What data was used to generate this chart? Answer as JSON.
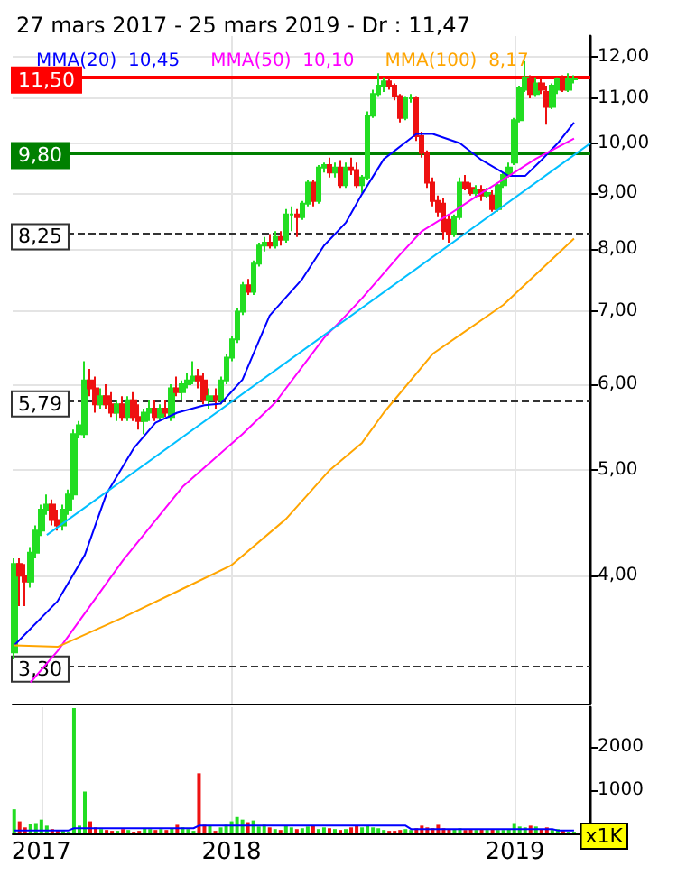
{
  "chart_data": [
    {
      "type": "candlestick",
      "title": "27 mars 2017 - 25 mars 2019 - Dr : 11,47",
      "x": [
        "2017-03-27",
        "2017-04-03",
        "2017-04-10",
        "2017-04-17",
        "2017-04-24",
        "2017-05-01",
        "2017-05-08",
        "2017-05-15",
        "2017-05-22",
        "2017-05-29",
        "2017-06-05",
        "2017-06-12",
        "2017-06-19",
        "2017-06-26",
        "2017-07-03",
        "2017-07-10",
        "2017-07-17",
        "2017-07-24",
        "2017-07-31",
        "2017-08-07",
        "2017-08-14",
        "2017-08-21",
        "2017-08-28",
        "2017-09-04",
        "2017-09-11",
        "2017-09-18",
        "2017-09-25",
        "2017-10-02",
        "2017-10-09",
        "2017-10-16",
        "2017-10-23",
        "2017-10-30",
        "2017-11-06",
        "2017-11-13",
        "2017-11-20",
        "2017-11-27",
        "2017-12-04",
        "2017-12-11",
        "2017-12-18",
        "2017-12-25",
        "2018-01-01",
        "2018-01-08",
        "2018-01-15",
        "2018-01-22",
        "2018-01-29",
        "2018-02-05",
        "2018-02-12",
        "2018-02-19",
        "2018-02-26",
        "2018-03-05",
        "2018-03-12",
        "2018-03-19",
        "2018-03-26",
        "2018-04-02",
        "2018-04-09",
        "2018-04-16",
        "2018-04-23",
        "2018-04-30",
        "2018-05-07",
        "2018-05-14",
        "2018-05-21",
        "2018-05-28",
        "2018-06-04",
        "2018-06-11",
        "2018-06-18",
        "2018-06-25",
        "2018-07-02",
        "2018-07-09",
        "2018-07-16",
        "2018-07-23",
        "2018-07-30",
        "2018-08-06",
        "2018-08-13",
        "2018-08-20",
        "2018-08-27",
        "2018-09-03",
        "2018-09-10",
        "2018-09-17",
        "2018-09-24",
        "2018-10-01",
        "2018-10-08",
        "2018-10-15",
        "2018-10-22",
        "2018-10-29",
        "2018-11-05",
        "2018-11-12",
        "2018-11-19",
        "2018-11-26",
        "2018-12-03",
        "2018-12-10",
        "2018-12-17",
        "2018-12-24",
        "2018-12-31",
        "2019-01-07",
        "2019-01-14",
        "2019-01-21",
        "2019-01-28",
        "2019-02-04",
        "2019-02-11",
        "2019-02-18",
        "2019-02-25",
        "2019-03-04",
        "2019-03-11",
        "2019-03-18"
      ],
      "ohlc": [
        [
          3.4,
          4.15,
          3.35,
          4.1
        ],
        [
          4.1,
          4.15,
          3.75,
          4.0
        ],
        [
          4.0,
          4.1,
          3.75,
          3.95
        ],
        [
          3.95,
          4.25,
          3.9,
          4.2
        ],
        [
          4.2,
          4.45,
          4.15,
          4.4
        ],
        [
          4.4,
          4.65,
          4.35,
          4.6
        ],
        [
          4.6,
          4.75,
          4.55,
          4.65
        ],
        [
          4.65,
          4.7,
          4.45,
          4.5
        ],
        [
          4.5,
          4.6,
          4.4,
          4.45
        ],
        [
          4.45,
          4.65,
          4.4,
          4.6
        ],
        [
          4.6,
          4.8,
          4.55,
          4.75
        ],
        [
          4.75,
          5.45,
          4.7,
          5.4
        ],
        [
          5.4,
          5.55,
          5.35,
          5.5
        ],
        [
          5.4,
          6.3,
          5.35,
          6.05
        ],
        [
          6.05,
          6.2,
          5.85,
          5.95
        ],
        [
          5.95,
          6.1,
          5.65,
          5.75
        ],
        [
          5.75,
          5.95,
          5.7,
          5.85
        ],
        [
          5.85,
          6.0,
          5.7,
          5.75
        ],
        [
          5.75,
          5.9,
          5.6,
          5.65
        ],
        [
          5.65,
          5.8,
          5.55,
          5.75
        ],
        [
          5.75,
          5.85,
          5.55,
          5.6
        ],
        [
          5.6,
          5.85,
          5.55,
          5.8
        ],
        [
          5.8,
          5.9,
          5.55,
          5.6
        ],
        [
          5.6,
          5.75,
          5.45,
          5.55
        ],
        [
          5.55,
          5.7,
          5.4,
          5.65
        ],
        [
          5.65,
          5.8,
          5.55,
          5.7
        ],
        [
          5.7,
          5.8,
          5.55,
          5.6
        ],
        [
          5.6,
          5.75,
          5.55,
          5.7
        ],
        [
          5.7,
          5.8,
          5.6,
          5.65
        ],
        [
          5.6,
          6.0,
          5.55,
          5.95
        ],
        [
          5.95,
          6.1,
          5.85,
          5.9
        ],
        [
          5.9,
          6.05,
          5.8,
          6.0
        ],
        [
          6.0,
          6.15,
          5.95,
          6.05
        ],
        [
          6.05,
          6.3,
          6.0,
          6.1
        ],
        [
          6.1,
          6.2,
          5.95,
          6.05
        ],
        [
          6.05,
          6.15,
          5.75,
          5.8
        ],
        [
          5.8,
          5.95,
          5.7,
          5.85
        ],
        [
          5.85,
          5.95,
          5.7,
          5.8
        ],
        [
          5.8,
          6.1,
          5.75,
          6.05
        ],
        [
          6.05,
          6.4,
          6.0,
          6.35
        ],
        [
          6.35,
          6.65,
          6.3,
          6.6
        ],
        [
          6.6,
          7.05,
          6.55,
          7.0
        ],
        [
          7.0,
          7.45,
          6.95,
          7.4
        ],
        [
          7.4,
          7.5,
          7.25,
          7.3
        ],
        [
          7.3,
          7.8,
          7.25,
          7.75
        ],
        [
          7.75,
          8.1,
          7.7,
          8.05
        ],
        [
          8.05,
          8.2,
          7.95,
          8.1
        ],
        [
          8.1,
          8.25,
          8.0,
          8.05
        ],
        [
          8.05,
          8.3,
          8.0,
          8.2
        ],
        [
          8.2,
          8.3,
          8.05,
          8.15
        ],
        [
          8.15,
          8.7,
          8.1,
          8.6
        ],
        [
          8.6,
          8.75,
          8.3,
          8.6
        ],
        [
          8.6,
          8.7,
          8.2,
          8.55
        ],
        [
          8.55,
          8.85,
          8.5,
          8.8
        ],
        [
          8.8,
          9.25,
          8.75,
          9.2
        ],
        [
          9.2,
          9.25,
          8.75,
          8.85
        ],
        [
          8.85,
          9.55,
          8.8,
          9.5
        ],
        [
          9.5,
          9.6,
          9.4,
          9.55
        ],
        [
          9.55,
          9.7,
          9.3,
          9.4
        ],
        [
          9.4,
          9.6,
          9.3,
          9.5
        ],
        [
          9.5,
          9.65,
          9.1,
          9.15
        ],
        [
          9.15,
          9.6,
          9.1,
          9.5
        ],
        [
          9.5,
          9.7,
          9.35,
          9.45
        ],
        [
          9.45,
          9.6,
          9.1,
          9.15
        ],
        [
          9.15,
          9.35,
          9.0,
          9.3
        ],
        [
          9.3,
          10.7,
          9.25,
          10.6
        ],
        [
          10.6,
          11.2,
          10.55,
          11.1
        ],
        [
          11.1,
          11.6,
          11.05,
          11.3
        ],
        [
          11.3,
          11.5,
          11.15,
          11.4
        ],
        [
          11.4,
          11.5,
          11.2,
          11.3
        ],
        [
          11.3,
          11.35,
          10.95,
          11.05
        ],
        [
          11.05,
          11.1,
          10.45,
          10.55
        ],
        [
          10.55,
          11.05,
          10.5,
          11.0
        ],
        [
          11.0,
          11.1,
          10.9,
          11.0
        ],
        [
          11.0,
          11.05,
          10.05,
          10.15
        ],
        [
          10.15,
          10.25,
          9.7,
          9.8
        ],
        [
          9.8,
          9.85,
          9.1,
          9.2
        ],
        [
          9.2,
          9.3,
          8.75,
          8.85
        ],
        [
          8.85,
          8.95,
          8.55,
          8.65
        ],
        [
          8.8,
          8.9,
          8.15,
          8.3
        ],
        [
          8.5,
          8.6,
          8.1,
          8.25
        ],
        [
          8.25,
          8.6,
          8.2,
          8.55
        ],
        [
          8.55,
          9.3,
          8.5,
          9.2
        ],
        [
          9.2,
          9.35,
          9.05,
          9.1
        ],
        [
          9.1,
          9.2,
          8.95,
          9.0
        ],
        [
          9.0,
          9.15,
          8.9,
          9.05
        ],
        [
          9.05,
          9.15,
          8.85,
          8.95
        ],
        [
          8.95,
          9.1,
          8.9,
          9.0
        ],
        [
          8.95,
          9.05,
          8.65,
          8.7
        ],
        [
          8.7,
          9.2,
          8.65,
          9.15
        ],
        [
          9.15,
          9.4,
          9.1,
          9.35
        ],
        [
          9.35,
          9.6,
          9.3,
          9.5
        ],
        [
          9.6,
          10.55,
          9.55,
          10.5
        ],
        [
          10.5,
          11.3,
          10.45,
          11.25
        ],
        [
          11.2,
          11.9,
          11.15,
          11.5
        ],
        [
          11.45,
          11.55,
          11.0,
          11.1
        ],
        [
          11.1,
          11.5,
          11.05,
          11.35
        ],
        [
          11.35,
          11.45,
          11.1,
          11.2
        ],
        [
          11.15,
          11.3,
          10.4,
          10.8
        ],
        [
          10.8,
          11.35,
          10.75,
          11.3
        ],
        [
          11.2,
          11.5,
          11.1,
          11.45
        ],
        [
          11.45,
          11.55,
          11.15,
          11.2
        ],
        [
          11.2,
          11.6,
          11.15,
          11.45
        ],
        [
          11.45,
          11.55,
          11.35,
          11.47
        ]
      ],
      "colors": [
        "#22dd22",
        "#ee1111",
        "#ee1111",
        "#22dd22",
        "#22dd22",
        "#22dd22",
        "#22dd22",
        "#ee1111",
        "#ee1111",
        "#22dd22",
        "#22dd22",
        "#22dd22",
        "#22dd22",
        "#22dd22",
        "#ee1111",
        "#ee1111",
        "#22dd22",
        "#ee1111",
        "#ee1111",
        "#22dd22",
        "#ee1111",
        "#22dd22",
        "#ee1111",
        "#ee1111",
        "#22dd22",
        "#22dd22",
        "#ee1111",
        "#22dd22",
        "#ee1111",
        "#22dd22",
        "#ee1111",
        "#22dd22",
        "#22dd22",
        "#22dd22",
        "#ee1111",
        "#ee1111",
        "#22dd22",
        "#ee1111",
        "#22dd22",
        "#22dd22",
        "#22dd22",
        "#22dd22",
        "#22dd22",
        "#ee1111",
        "#22dd22",
        "#22dd22",
        "#22dd22",
        "#ee1111",
        "#22dd22",
        "#ee1111",
        "#22dd22",
        "#22dd22",
        "#ee1111",
        "#22dd22",
        "#22dd22",
        "#ee1111",
        "#22dd22",
        "#22dd22",
        "#ee1111",
        "#22dd22",
        "#ee1111",
        "#22dd22",
        "#ee1111",
        "#ee1111",
        "#22dd22",
        "#22dd22",
        "#22dd22",
        "#22dd22",
        "#22dd22",
        "#ee1111",
        "#ee1111",
        "#ee1111",
        "#22dd22",
        "#22dd22",
        "#ee1111",
        "#ee1111",
        "#ee1111",
        "#ee1111",
        "#ee1111",
        "#ee1111",
        "#ee1111",
        "#22dd22",
        "#22dd22",
        "#ee1111",
        "#ee1111",
        "#22dd22",
        "#ee1111",
        "#22dd22",
        "#ee1111",
        "#22dd22",
        "#22dd22",
        "#22dd22",
        "#22dd22",
        "#22dd22",
        "#22dd22",
        "#ee1111",
        "#22dd22",
        "#ee1111",
        "#ee1111",
        "#22dd22",
        "#22dd22",
        "#ee1111",
        "#22dd22",
        "#22dd22"
      ],
      "series": [
        {
          "name": "MMA(20)  10,45",
          "type": "line",
          "color": "#0000ff",
          "x": [
            "2017-03-27",
            "2017-05-22",
            "2017-06-26",
            "2017-07-24",
            "2017-08-28",
            "2017-09-25",
            "2017-10-23",
            "2017-11-27",
            "2017-12-18",
            "2018-01-15",
            "2018-02-19",
            "2018-04-02",
            "2018-04-30",
            "2018-05-28",
            "2018-06-18",
            "2018-07-16",
            "2018-08-27",
            "2018-09-17",
            "2018-10-22",
            "2018-11-19",
            "2018-12-24",
            "2019-01-14",
            "2019-02-04",
            "2019-02-25",
            "2019-03-18"
          ],
          "values": [
            3.45,
            3.79,
            4.18,
            4.76,
            5.24,
            5.53,
            5.65,
            5.74,
            5.76,
            6.06,
            6.94,
            7.5,
            8.05,
            8.45,
            8.98,
            9.67,
            10.2,
            10.2,
            10.0,
            9.65,
            9.33,
            9.33,
            9.65,
            10.0,
            10.45
          ]
        },
        {
          "name": "MMA(50)  10,10",
          "type": "line",
          "color": "#ff00ff",
          "x": [
            "2017-04-17",
            "2017-05-22",
            "2017-08-14",
            "2017-10-30",
            "2018-01-15",
            "2018-02-26",
            "2018-04-30",
            "2018-05-28",
            "2018-06-18",
            "2018-08-06",
            "2018-09-03",
            "2018-10-08",
            "2018-11-19",
            "2018-12-24",
            "2019-01-28",
            "2019-03-18"
          ],
          "values": [
            3.19,
            3.41,
            4.13,
            4.83,
            5.4,
            5.77,
            6.62,
            6.94,
            7.2,
            7.9,
            8.3,
            8.6,
            9.0,
            9.33,
            9.68,
            10.1
          ]
        },
        {
          "name": "MMA(100)  8,17",
          "type": "line",
          "color": "#ffa500",
          "x": [
            "2017-03-27",
            "2017-05-22",
            "2017-08-14",
            "2017-10-30",
            "2018-01-01",
            "2018-03-12",
            "2018-05-07",
            "2018-06-18",
            "2018-07-16",
            "2018-09-17",
            "2018-12-17",
            "2019-03-18"
          ],
          "values": [
            3.45,
            3.44,
            3.66,
            3.89,
            4.09,
            4.51,
            5.0,
            5.3,
            5.65,
            6.4,
            7.1,
            8.17
          ]
        },
        {
          "type": "line",
          "color": "#00bfff",
          "x": [
            "2017-05-08",
            "2019-04-08"
          ],
          "values": [
            4.36,
            10.0
          ]
        }
      ],
      "ref_lines": [
        {
          "axis": "y",
          "value": 11.5,
          "label": "11,50",
          "color": "#ff0000",
          "line_style": "solid"
        },
        {
          "axis": "y",
          "value": 9.8,
          "label": "9,80",
          "color": "#008000",
          "line_style": "solid"
        },
        {
          "axis": "y",
          "value": 8.25,
          "label": "8,25",
          "color": "#333333",
          "line_style": "dashed"
        },
        {
          "axis": "y",
          "value": 5.79,
          "label": "5,79",
          "color": "#333333",
          "line_style": "dashed"
        },
        {
          "axis": "y",
          "value": 3.3,
          "label": "3,30",
          "color": "#333333",
          "line_style": "dashed"
        }
      ],
      "log": true,
      "ylim": [
        3.05,
        12.55
      ],
      "yticks": [
        {
          "value": 4,
          "label": "4,00"
        },
        {
          "value": 5,
          "label": "5,00"
        },
        {
          "value": 6,
          "label": "6,00"
        },
        {
          "value": 7,
          "label": "7,00"
        },
        {
          "value": 8,
          "label": "8,00"
        },
        {
          "value": 9,
          "label": "9,00"
        },
        {
          "value": 10,
          "label": "10,00"
        },
        {
          "value": 11,
          "label": "11,00"
        },
        {
          "value": 12,
          "label": "12,00"
        }
      ],
      "xlim": [
        "2017-03-25",
        "2019-04-08"
      ],
      "xticks": [
        {
          "value": "2018-01-01",
          "label": null
        },
        {
          "value": "2019-01-01",
          "label": null
        }
      ],
      "tick_labels": "y",
      "grid": true,
      "legend": "top left"
    },
    {
      "type": "bar",
      "series": [
        {
          "type": "bar",
          "x": [
            "2017-03-27",
            "2017-04-03",
            "2017-04-10",
            "2017-04-17",
            "2017-04-24",
            "2017-05-01",
            "2017-05-08",
            "2017-05-15",
            "2017-05-22",
            "2017-05-29",
            "2017-06-05",
            "2017-06-12",
            "2017-06-19",
            "2017-06-26",
            "2017-07-03",
            "2017-07-10",
            "2017-07-17",
            "2017-07-24",
            "2017-07-31",
            "2017-08-07",
            "2017-08-14",
            "2017-08-21",
            "2017-08-28",
            "2017-09-04",
            "2017-09-11",
            "2017-09-18",
            "2017-09-25",
            "2017-10-02",
            "2017-10-09",
            "2017-10-16",
            "2017-10-23",
            "2017-10-30",
            "2017-11-06",
            "2017-11-13",
            "2017-11-20",
            "2017-11-27",
            "2017-12-04",
            "2017-12-11",
            "2017-12-18",
            "2017-12-25",
            "2018-01-01",
            "2018-01-08",
            "2018-01-15",
            "2018-01-22",
            "2018-01-29",
            "2018-02-05",
            "2018-02-12",
            "2018-02-19",
            "2018-02-26",
            "2018-03-05",
            "2018-03-12",
            "2018-03-19",
            "2018-03-26",
            "2018-04-02",
            "2018-04-09",
            "2018-04-16",
            "2018-04-23",
            "2018-04-30",
            "2018-05-07",
            "2018-05-14",
            "2018-05-21",
            "2018-05-28",
            "2018-06-04",
            "2018-06-11",
            "2018-06-18",
            "2018-06-25",
            "2018-07-02",
            "2018-07-09",
            "2018-07-16",
            "2018-07-23",
            "2018-07-30",
            "2018-08-06",
            "2018-08-13",
            "2018-08-20",
            "2018-08-27",
            "2018-09-03",
            "2018-09-10",
            "2018-09-17",
            "2018-09-24",
            "2018-10-01",
            "2018-10-08",
            "2018-10-15",
            "2018-10-22",
            "2018-10-29",
            "2018-11-05",
            "2018-11-12",
            "2018-11-19",
            "2018-11-26",
            "2018-12-03",
            "2018-12-10",
            "2018-12-17",
            "2018-12-24",
            "2018-12-31",
            "2019-01-07",
            "2019-01-14",
            "2019-01-21",
            "2019-01-28",
            "2019-02-04",
            "2019-02-11",
            "2019-02-18",
            "2019-02-25",
            "2019-03-04",
            "2019-03-11",
            "2019-03-18"
          ],
          "values": [
            560,
            280,
            140,
            210,
            240,
            320,
            180,
            100,
            60,
            60,
            40,
            2900,
            180,
            970,
            280,
            140,
            100,
            80,
            60,
            60,
            100,
            80,
            40,
            60,
            120,
            100,
            80,
            100,
            80,
            120,
            200,
            140,
            100,
            60,
            1390,
            200,
            180,
            60,
            140,
            200,
            280,
            380,
            320,
            260,
            300,
            160,
            200,
            140,
            100,
            80,
            180,
            140,
            100,
            120,
            160,
            180,
            100,
            140,
            120,
            100,
            80,
            100,
            140,
            180,
            140,
            180,
            140,
            120,
            80,
            60,
            60,
            80,
            100,
            80,
            120,
            180,
            140,
            120,
            200,
            120,
            100,
            100,
            120,
            80,
            100,
            80,
            100,
            80,
            100,
            80,
            80,
            100,
            240,
            160,
            140,
            180,
            160,
            100,
            140,
            80,
            100,
            60,
            40,
            40
          ],
          "colors": [
            "#22dd22",
            "#ee1111",
            "#ee1111",
            "#22dd22",
            "#22dd22",
            "#22dd22",
            "#22dd22",
            "#ee1111",
            "#ee1111",
            "#22dd22",
            "#22dd22",
            "#22dd22",
            "#22dd22",
            "#22dd22",
            "#ee1111",
            "#ee1111",
            "#22dd22",
            "#ee1111",
            "#ee1111",
            "#22dd22",
            "#ee1111",
            "#22dd22",
            "#ee1111",
            "#ee1111",
            "#22dd22",
            "#22dd22",
            "#ee1111",
            "#22dd22",
            "#ee1111",
            "#22dd22",
            "#ee1111",
            "#22dd22",
            "#22dd22",
            "#22dd22",
            "#ee1111",
            "#ee1111",
            "#22dd22",
            "#ee1111",
            "#22dd22",
            "#22dd22",
            "#22dd22",
            "#22dd22",
            "#22dd22",
            "#ee1111",
            "#22dd22",
            "#22dd22",
            "#22dd22",
            "#ee1111",
            "#22dd22",
            "#ee1111",
            "#22dd22",
            "#22dd22",
            "#ee1111",
            "#22dd22",
            "#22dd22",
            "#ee1111",
            "#22dd22",
            "#22dd22",
            "#ee1111",
            "#22dd22",
            "#ee1111",
            "#22dd22",
            "#ee1111",
            "#ee1111",
            "#22dd22",
            "#22dd22",
            "#22dd22",
            "#22dd22",
            "#22dd22",
            "#ee1111",
            "#ee1111",
            "#ee1111",
            "#22dd22",
            "#22dd22",
            "#ee1111",
            "#ee1111",
            "#ee1111",
            "#ee1111",
            "#ee1111",
            "#ee1111",
            "#ee1111",
            "#22dd22",
            "#22dd22",
            "#ee1111",
            "#ee1111",
            "#22dd22",
            "#ee1111",
            "#22dd22",
            "#ee1111",
            "#22dd22",
            "#22dd22",
            "#22dd22",
            "#22dd22",
            "#22dd22",
            "#22dd22",
            "#ee1111",
            "#22dd22",
            "#ee1111",
            "#ee1111",
            "#22dd22",
            "#22dd22",
            "#ee1111",
            "#22dd22",
            "#22dd22"
          ]
        },
        {
          "type": "line",
          "color": "#0000ff",
          "x": [
            "2017-03-27",
            "2017-06-05",
            "2017-06-12",
            "2017-11-13",
            "2017-11-20",
            "2018-08-13",
            "2018-08-20",
            "2019-02-18",
            "2019-02-25",
            "2019-03-18"
          ],
          "values": [
            70,
            70,
            120,
            120,
            180,
            180,
            100,
            100,
            70,
            70
          ]
        }
      ],
      "ylim": [
        0,
        2920
      ],
      "yticks": [
        1000,
        2000
      ],
      "xlim": [
        "2017-03-25",
        "2019-04-08"
      ],
      "xticks": [
        {
          "value": "2017-05-01",
          "label": "2017"
        },
        {
          "value": "2018-01-01",
          "label": "2018"
        },
        {
          "value": "2019-01-01",
          "label": "2019"
        }
      ],
      "grid": "x",
      "annotations": [
        "x1K"
      ]
    }
  ]
}
